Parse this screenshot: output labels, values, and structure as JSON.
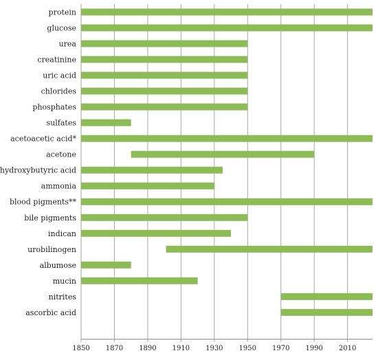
{
  "chart_data": {
    "type": "bar",
    "orientation": "horizontal",
    "subtype": "timeline-range",
    "title": "",
    "xlabel": "",
    "ylabel": "",
    "xlim": [
      1850,
      2025
    ],
    "x_ticks": [
      1850,
      1870,
      1890,
      1910,
      1930,
      1950,
      1970,
      1990,
      2010
    ],
    "grid": "vertical",
    "bar_color": "#8dbb55",
    "grid_color": "#a6a6a6",
    "series": [
      {
        "label": "protein",
        "start": 1850,
        "end": 2025
      },
      {
        "label": "glucose",
        "start": 1850,
        "end": 2025
      },
      {
        "label": "urea",
        "start": 1850,
        "end": 1950
      },
      {
        "label": "creatinine",
        "start": 1850,
        "end": 1950
      },
      {
        "label": "uric acid",
        "start": 1850,
        "end": 1950
      },
      {
        "label": "chlorides",
        "start": 1850,
        "end": 1950
      },
      {
        "label": "phosphates",
        "start": 1850,
        "end": 1950
      },
      {
        "label": "sulfates",
        "start": 1850,
        "end": 1880
      },
      {
        "label": "acetoacetic acid*",
        "start": 1850,
        "end": 2025
      },
      {
        "label": "acetone",
        "start": 1880,
        "end": 1990
      },
      {
        "label": "β-hydroxybutyric acid",
        "start": 1850,
        "end": 1935
      },
      {
        "label": "ammonia",
        "start": 1850,
        "end": 1930
      },
      {
        "label": "blood pigments**",
        "start": 1850,
        "end": 2025
      },
      {
        "label": "bile pigments",
        "start": 1850,
        "end": 1950
      },
      {
        "label": "indican",
        "start": 1850,
        "end": 1940
      },
      {
        "label": "urobilinogen",
        "start": 1901,
        "end": 2025
      },
      {
        "label": "albumose",
        "start": 1850,
        "end": 1880
      },
      {
        "label": "mucin",
        "start": 1850,
        "end": 1920
      },
      {
        "label": "nitrites",
        "start": 1970,
        "end": 2025
      },
      {
        "label": "ascorbic acid",
        "start": 1970,
        "end": 2025
      }
    ]
  }
}
